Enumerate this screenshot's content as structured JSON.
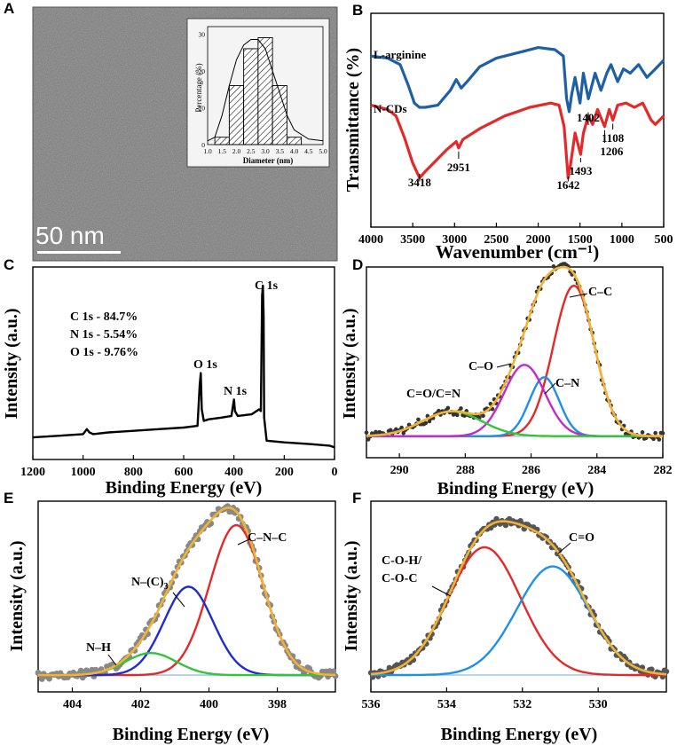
{
  "panels": {
    "A": {
      "letter": "A",
      "scale_bar_label": "50 nm",
      "chart_data": {
        "type": "bar",
        "xlabel": "Diameter (nm)",
        "ylabel": "Percentage (%)",
        "x_ticks": [
          "1.0",
          "1.5",
          "2.0",
          "2.5",
          "3.0",
          "3.5",
          "4.0",
          "4.5",
          "5.0"
        ],
        "y_ticks": [
          "0",
          "10",
          "20",
          "30"
        ],
        "xlim": [
          1.0,
          5.0
        ],
        "ylim": [
          0,
          32
        ],
        "bins": [
          [
            1.25,
            1.75
          ],
          [
            1.75,
            2.25
          ],
          [
            2.25,
            2.75
          ],
          [
            2.75,
            3.25
          ],
          [
            3.25,
            3.75
          ],
          [
            3.75,
            4.25
          ]
        ],
        "values": [
          2,
          16,
          26,
          29,
          16,
          2
        ],
        "fit_curve": [
          [
            1.0,
            1
          ],
          [
            1.25,
            2
          ],
          [
            1.5,
            8
          ],
          [
            1.75,
            16
          ],
          [
            2.0,
            23
          ],
          [
            2.25,
            27
          ],
          [
            2.5,
            28.5
          ],
          [
            2.75,
            28.5
          ],
          [
            3.0,
            26
          ],
          [
            3.25,
            20
          ],
          [
            3.5,
            14
          ],
          [
            3.75,
            8
          ],
          [
            4.0,
            4
          ],
          [
            4.5,
            1.5
          ],
          [
            5.0,
            1
          ]
        ]
      }
    },
    "B": {
      "letter": "B",
      "chart_data": {
        "type": "line",
        "xlabel": "Wavenumber (cm⁻¹)",
        "ylabel": "Transmittance (%)",
        "xlim": [
          4000,
          500
        ],
        "ylim": [
          0,
          100
        ],
        "x_ticks": [
          "4000",
          "3500",
          "3000",
          "2500",
          "2000",
          "1500",
          "1000",
          "500"
        ],
        "series": [
          {
            "name": "L-arginine",
            "color": "#1f5fa6",
            "points": [
              [
                4000,
                80
              ],
              [
                3800,
                79
              ],
              [
                3650,
                76
              ],
              [
                3550,
                66
              ],
              [
                3480,
                58
              ],
              [
                3420,
                56
              ],
              [
                3350,
                56
              ],
              [
                3200,
                57
              ],
              [
                3050,
                64
              ],
              [
                2980,
                69
              ],
              [
                2920,
                65
              ],
              [
                2850,
                68
              ],
              [
                2700,
                75
              ],
              [
                2500,
                79
              ],
              [
                2200,
                82
              ],
              [
                2000,
                84
              ],
              [
                1800,
                83
              ],
              [
                1700,
                80
              ],
              [
                1660,
                60
              ],
              [
                1630,
                54
              ],
              [
                1600,
                62
              ],
              [
                1560,
                70
              ],
              [
                1500,
                58
              ],
              [
                1460,
                72
              ],
              [
                1400,
                60
              ],
              [
                1320,
                72
              ],
              [
                1250,
                64
              ],
              [
                1180,
                72
              ],
              [
                1130,
                76
              ],
              [
                1050,
                68
              ],
              [
                980,
                74
              ],
              [
                900,
                72
              ],
              [
                800,
                76
              ],
              [
                700,
                70
              ],
              [
                600,
                74
              ],
              [
                500,
                78
              ]
            ]
          },
          {
            "name": "N-CDs",
            "color": "#e32a2a",
            "points": [
              [
                4000,
                57
              ],
              [
                3800,
                55
              ],
              [
                3700,
                52
              ],
              [
                3600,
                42
              ],
              [
                3500,
                30
              ],
              [
                3418,
                23
              ],
              [
                3350,
                26
              ],
              [
                3250,
                30
              ],
              [
                3100,
                36
              ],
              [
                2980,
                40
              ],
              [
                2951,
                37
              ],
              [
                2900,
                41
              ],
              [
                2700,
                46
              ],
              [
                2400,
                52
              ],
              [
                2100,
                56
              ],
              [
                1850,
                58
              ],
              [
                1750,
                57
              ],
              [
                1690,
                47
              ],
              [
                1642,
                23
              ],
              [
                1610,
                30
              ],
              [
                1560,
                44
              ],
              [
                1493,
                34
              ],
              [
                1460,
                44
              ],
              [
                1402,
                52
              ],
              [
                1350,
                48
              ],
              [
                1290,
                55
              ],
              [
                1206,
                47
              ],
              [
                1150,
                55
              ],
              [
                1108,
                50
              ],
              [
                1050,
                57
              ],
              [
                950,
                58
              ],
              [
                850,
                56
              ],
              [
                750,
                58
              ],
              [
                650,
                50
              ],
              [
                600,
                48
              ],
              [
                500,
                52
              ]
            ]
          }
        ],
        "annotations": [
          "3418",
          "2951",
          "1642",
          "1493",
          "1402",
          "1206",
          "1108"
        ]
      }
    },
    "C": {
      "letter": "C",
      "chart_data": {
        "type": "line",
        "xlabel": "Binding Energy (eV)",
        "ylabel": "Intensity (a.u.)",
        "xlim": [
          1200,
          0
        ],
        "ylim": [
          0,
          100
        ],
        "x_ticks": [
          "1200",
          "1000",
          "800",
          "600",
          "400",
          "200",
          "0"
        ],
        "peaks": [
          "C 1s",
          "O 1s",
          "N 1s"
        ],
        "composition": [
          "C 1s - 84.7%",
          "N 1s - 5.54%",
          "O 1s - 9.76%"
        ],
        "series": [
          {
            "name": "survey",
            "color": "#000000",
            "points": [
              [
                1200,
                8
              ],
              [
                1100,
                9
              ],
              [
                1000,
                10
              ],
              [
                985,
                13
              ],
              [
                975,
                11
              ],
              [
                960,
                10
              ],
              [
                900,
                11
              ],
              [
                800,
                12
              ],
              [
                700,
                13
              ],
              [
                600,
                14
              ],
              [
                545,
                15
              ],
              [
                536,
                40
              ],
              [
                532,
                47
              ],
              [
                528,
                25
              ],
              [
                520,
                18
              ],
              [
                500,
                19
              ],
              [
                450,
                20
              ],
              [
                410,
                21
              ],
              [
                404,
                27
              ],
              [
                400,
                31
              ],
              [
                396,
                24
              ],
              [
                385,
                21
              ],
              [
                330,
                22
              ],
              [
                300,
                25
              ],
              [
                293,
                24
              ],
              [
                288,
                94
              ],
              [
                285,
                100
              ],
              [
                282,
                82
              ],
              [
                280,
                20
              ],
              [
                270,
                6
              ],
              [
                200,
                5
              ],
              [
                100,
                4
              ],
              [
                20,
                3
              ],
              [
                0,
                2
              ]
            ]
          }
        ]
      }
    },
    "D": {
      "letter": "D",
      "chart_data": {
        "type": "line",
        "xlabel": "Binding Energy (eV)",
        "ylabel": "Intensity (a.u.)",
        "xlim": [
          291,
          282
        ],
        "ylim": [
          0,
          100
        ],
        "x_ticks": [
          "290",
          "288",
          "286",
          "284",
          "282"
        ],
        "components": [
          {
            "name": "C–C",
            "color": "#e32a2a",
            "center": 284.7,
            "height": 97,
            "sigma": 0.62
          },
          {
            "name": "C–N",
            "color": "#1f8fe8",
            "center": 285.6,
            "height": 38,
            "sigma": 0.45
          },
          {
            "name": "C–O",
            "color": "#c02ccb",
            "center": 286.2,
            "height": 46,
            "sigma": 0.62
          },
          {
            "name": "C=O/C=N",
            "color": "#35c23c",
            "center": 288.4,
            "height": 16,
            "sigma": 0.9
          }
        ],
        "baseline": 3,
        "envelope_color": "#f2b233",
        "data_color": "#333333"
      }
    },
    "E": {
      "letter": "E",
      "chart_data": {
        "type": "line",
        "xlabel": "Binding Energy (eV)",
        "ylabel": "Intensity (a.u.)",
        "xlim": [
          405,
          396.3
        ],
        "ylim": [
          0,
          100
        ],
        "x_ticks": [
          "404",
          "402",
          "400",
          "398"
        ],
        "components": [
          {
            "name": "C–N–C",
            "color": "#e32a2a",
            "center": 399.2,
            "height": 95,
            "sigma": 0.78
          },
          {
            "name": "N–(C)",
            "color": "#1f2ccf",
            "center": 400.6,
            "height": 56,
            "sigma": 0.72
          },
          {
            "name": "N–H",
            "color": "#35c23c",
            "center": 401.7,
            "height": 14,
            "sigma": 0.75
          }
        ],
        "n_c3_subscript": "3",
        "baseline": 5,
        "envelope_color": "#f2b233",
        "data_color": "#888888"
      }
    },
    "F": {
      "letter": "F",
      "chart_data": {
        "type": "line",
        "xlabel": "Binding Energy (eV)",
        "ylabel": "Intensity (a.u.)",
        "xlim": [
          536,
          528.2
        ],
        "ylim": [
          0,
          100
        ],
        "x_ticks": [
          "536",
          "534",
          "532",
          "530"
        ],
        "components": [
          {
            "name": "C-O-H/",
            "name2": "C-O-C",
            "color": "#e32a2a",
            "center": 533.0,
            "height": 80,
            "sigma": 0.95
          },
          {
            "name": "C=O",
            "color": "#1f8fe8",
            "center": 531.2,
            "height": 68,
            "sigma": 0.95
          }
        ],
        "baseline": 5,
        "envelope_color": "#f2b233",
        "data_color": "#555555"
      }
    }
  }
}
